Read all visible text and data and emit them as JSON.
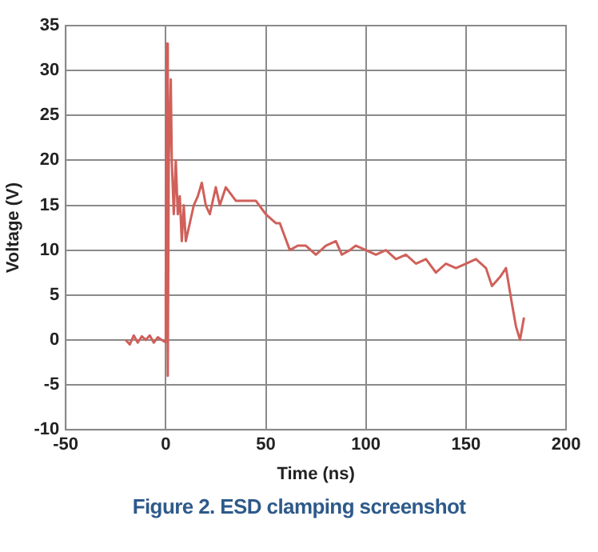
{
  "chart_data": {
    "type": "line",
    "xlabel": "Time (ns)",
    "ylabel": "Voltage (V)",
    "annotations": [
      "Figure 2. ESD clamping screenshot"
    ],
    "xlim": [
      -50,
      200
    ],
    "xticks": [
      -50,
      0,
      50,
      100,
      150,
      200
    ],
    "ylim": [
      -10,
      35
    ],
    "yticks": [
      -10,
      -5,
      0,
      5,
      10,
      15,
      20,
      25,
      30,
      35
    ],
    "grid": true,
    "legend": false,
    "marker": "none",
    "line_style": "solid",
    "x": [
      -20,
      -18,
      -16,
      -14,
      -12,
      -10,
      -8,
      -6,
      -4,
      -2,
      -0.5,
      0,
      0.5,
      1,
      1.5,
      2.5,
      3,
      4,
      5,
      6,
      7,
      8,
      9,
      10,
      12,
      14,
      16,
      18,
      20,
      22,
      25,
      27,
      30,
      35,
      40,
      45,
      50,
      55,
      57,
      62,
      66,
      70,
      75,
      80,
      85,
      88,
      92,
      95,
      100,
      105,
      110,
      115,
      120,
      125,
      130,
      135,
      140,
      145,
      150,
      155,
      160,
      163,
      167,
      170,
      173,
      175,
      177,
      179
    ],
    "series": [
      {
        "color": "#d0605a",
        "values": [
          0,
          -0.5,
          0.5,
          -0.3,
          0.4,
          0,
          0.5,
          -0.3,
          0.3,
          0,
          -0.2,
          5,
          33,
          -4,
          20,
          29,
          20,
          14,
          20,
          14,
          16,
          11,
          15,
          11,
          13,
          15,
          16,
          17.5,
          15,
          14,
          17,
          15,
          17,
          15.5,
          15.5,
          15.5,
          14,
          13,
          13,
          10,
          10.5,
          10.5,
          9.5,
          10.5,
          11,
          9.5,
          10,
          10.5,
          10,
          9.5,
          10,
          9,
          9.5,
          8.5,
          9,
          7.5,
          8.5,
          8,
          8.5,
          9,
          8,
          6,
          7,
          8,
          4,
          1.5,
          0,
          2.5
        ]
      }
    ]
  }
}
